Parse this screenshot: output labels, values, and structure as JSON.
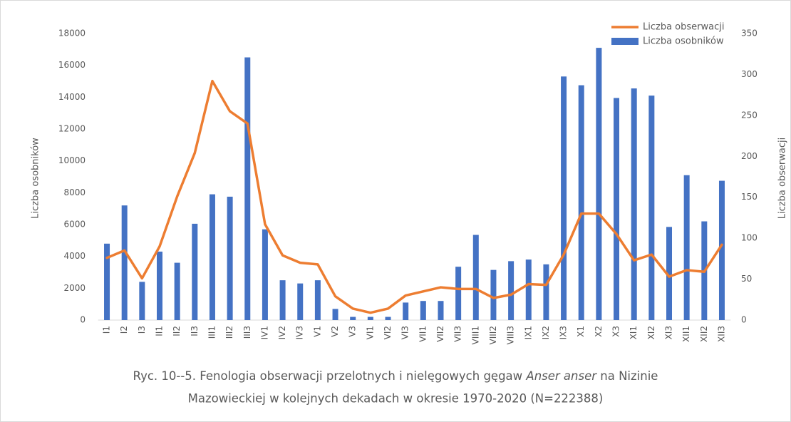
{
  "chart_data": {
    "type": "bar_line",
    "categories": [
      "I1",
      "I2",
      "I3",
      "II1",
      "II2",
      "II3",
      "III1",
      "III2",
      "III3",
      "IV1",
      "IV2",
      "IV3",
      "V1",
      "V2",
      "V3",
      "VI1",
      "VI2",
      "VI3",
      "VII1",
      "VII2",
      "VII3",
      "VIII1",
      "VIII2",
      "VIII3",
      "IX1",
      "IX2",
      "IX3",
      "X1",
      "X2",
      "X3",
      "XI1",
      "XI2",
      "XI3",
      "XII1",
      "XII2",
      "XII3"
    ],
    "series": [
      {
        "name": "Liczba obserwacji",
        "type": "line",
        "axis": "y2",
        "color": "#ed7d31",
        "values": [
          76,
          85,
          51,
          90,
          151,
          204,
          292,
          255,
          240,
          117,
          79,
          70,
          68,
          29,
          14,
          9,
          14,
          30,
          35,
          40,
          38,
          38,
          27,
          31,
          44,
          43,
          80,
          130,
          130,
          105,
          73,
          80,
          53,
          61,
          59,
          92
        ]
      },
      {
        "name": "Liczba osobników",
        "type": "bar",
        "axis": "y",
        "color": "#4472c4",
        "values": [
          4800,
          7200,
          2400,
          4300,
          3600,
          6050,
          7900,
          7750,
          16500,
          5700,
          2500,
          2300,
          2500,
          700,
          200,
          200,
          200,
          1100,
          1200,
          1200,
          3350,
          5350,
          3150,
          3700,
          3800,
          3500,
          15300,
          14750,
          17100,
          13950,
          14550,
          14100,
          5850,
          9100,
          6200,
          8750
        ]
      }
    ],
    "ylabel": "Liczba osobników",
    "y2label": "Liczba obserwacji",
    "ylim": [
      0,
      18000
    ],
    "yticks": [
      0,
      2000,
      4000,
      6000,
      8000,
      10000,
      12000,
      14000,
      16000,
      18000
    ],
    "y2lim": [
      0,
      350
    ],
    "y2ticks": [
      0,
      50,
      100,
      150,
      200,
      250,
      300,
      350
    ],
    "legend": "upper right",
    "grid": false,
    "caption": {
      "before": "Ryc. 10--5. Fenologia obserwacji przelotnych i nielęgowych gęgaw ",
      "italic": "Anser anser",
      "after": " na Nizinie",
      "line2": "Mazowieckiej w kolejnych dekadach w okresie 1970-2020 (N=222388)"
    }
  }
}
